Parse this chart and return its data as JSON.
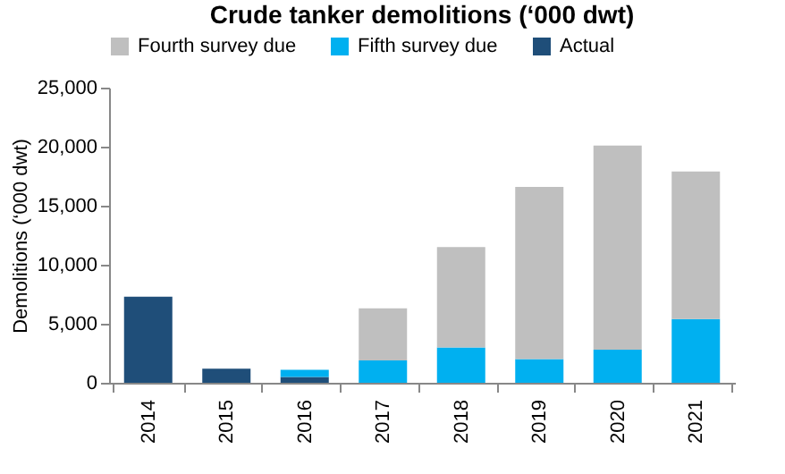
{
  "chart_data": {
    "type": "bar",
    "title": "Crude tanker demolitions  (‘000 dwt)",
    "ylabel": "Demolitions (‘000 dwt)",
    "categories": [
      "2014",
      "2015",
      "2016",
      "2017",
      "2018",
      "2019",
      "2020",
      "2021"
    ],
    "stacked": true,
    "series": [
      {
        "name": "Actual",
        "color": "#1f4e79",
        "values": [
          7300,
          1200,
          500,
          null,
          null,
          null,
          null,
          null
        ]
      },
      {
        "name": "Fifth survey due",
        "color": "#00b0f0",
        "values": [
          null,
          null,
          600,
          1900,
          3000,
          2000,
          2800,
          5400
        ]
      },
      {
        "name": "Fourth survey due",
        "color": "#bfbfbf",
        "values": [
          null,
          null,
          null,
          4400,
          8500,
          14600,
          17300,
          12500
        ]
      }
    ],
    "ylim": [
      0,
      25000
    ],
    "yticks": [
      0,
      {
        "value": 5000,
        "label": "5,000"
      },
      {
        "value": 10000,
        "label": "10,000"
      },
      {
        "value": 15000,
        "label": "15,000"
      },
      {
        "value": 20000,
        "label": "20,000"
      },
      {
        "value": 25000,
        "label": "25,000"
      }
    ],
    "grid": false,
    "legend": "top"
  }
}
